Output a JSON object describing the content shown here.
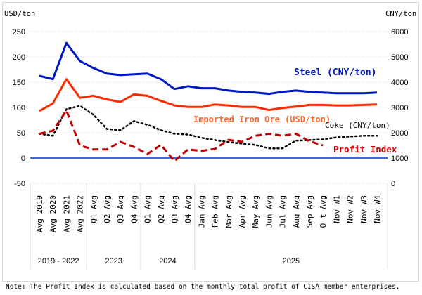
{
  "chart_data": {
    "type": "line",
    "left_axis": {
      "label": "USD/ton",
      "ticks": [
        -50,
        0,
        50,
        100,
        150,
        200,
        250
      ],
      "range": [
        -50,
        250
      ]
    },
    "right_axis": {
      "label": "CNY/ton",
      "ticks": [
        0,
        1000,
        2000,
        3000,
        4000,
        5000,
        6000
      ],
      "range": [
        0,
        6000
      ]
    },
    "grid": "horizontal dotted",
    "categories": [
      "Avg 2019",
      "Avg 2020",
      "Avg 2021",
      "Avg 2022",
      "Q1 Avg",
      "Q2 Avg",
      "Q3 Avg",
      "Q4 Avg",
      "Q1 Avg",
      "Q2 Avg",
      "Q3 Avg",
      "Q4 Avg",
      "Jan Avg",
      "Feb Avg",
      "Mar Avg",
      "Apr Avg",
      "May Avg",
      "Jun Avg",
      "Jul Avg",
      "Aug Avg",
      "Sep Avg",
      "O t Avg",
      "Nov W1",
      "Nov W2",
      "Nov W3",
      "Nov W4"
    ],
    "groups": [
      {
        "label": "2019 - 2022",
        "count": 4
      },
      {
        "label": "2023",
        "count": 4
      },
      {
        "label": "2024",
        "count": 4
      },
      {
        "label": "2025",
        "count": 14
      }
    ],
    "series": [
      {
        "name": "Steel (CNY/ton)",
        "axis": "right",
        "color": "#0018c0",
        "style": "solid",
        "values": [
          4250,
          4120,
          5550,
          4840,
          4560,
          4340,
          4280,
          4310,
          4340,
          4120,
          3730,
          3840,
          3760,
          3760,
          3670,
          3620,
          3590,
          3540,
          3620,
          3670,
          3620,
          3590,
          3560,
          3560,
          3560,
          3590
        ]
      },
      {
        "name": "Imported Iron Ore (USD/ton)",
        "axis": "left",
        "color": "#ff2a00",
        "style": "solid",
        "values": [
          93,
          108,
          156,
          119,
          123,
          116,
          111,
          126,
          123,
          113,
          104,
          101,
          101,
          106,
          104,
          101,
          101,
          95,
          99,
          102,
          105,
          105,
          104,
          104,
          105,
          106
        ]
      },
      {
        "name": "Coke (CNY/ton)",
        "axis": "right",
        "color": "#000000",
        "style": "dotted",
        "values": [
          1960,
          1880,
          2930,
          3070,
          2710,
          2150,
          2100,
          2460,
          2320,
          2100,
          1960,
          1930,
          1800,
          1710,
          1630,
          1570,
          1520,
          1380,
          1380,
          1690,
          1710,
          1740,
          1820,
          1850,
          1880,
          1880
        ]
      },
      {
        "name": "Profit Index",
        "axis": "left",
        "color": "#c00000",
        "style": "dashed",
        "values": [
          48,
          54,
          94,
          25,
          17,
          17,
          32,
          22,
          8,
          26,
          -6,
          17,
          14,
          18,
          36,
          32,
          44,
          48,
          44,
          48,
          33,
          25,
          null,
          null,
          null,
          null
        ]
      }
    ],
    "series_label_colors": [
      "#0018c0",
      "#ff6a30",
      "#000000",
      "#e00000"
    ],
    "zero_line_color": "#0033cc"
  },
  "note": "Note: The Profit Index is calculated based on the monthly total profit of CISA member enterprises."
}
